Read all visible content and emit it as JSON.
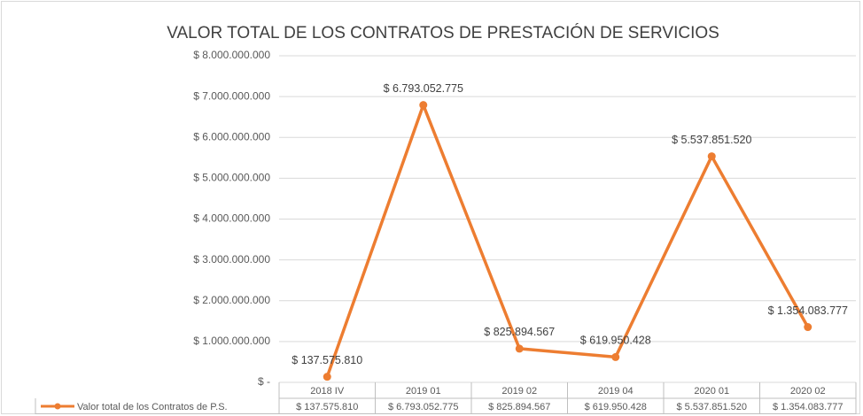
{
  "chart_data": {
    "type": "line",
    "title": "VALOR TOTAL DE LOS CONTRATOS DE PRESTACIÓN DE SERVICIOS",
    "categories": [
      "2018 IV",
      "2019 01",
      "2019 02",
      "2019 04",
      "2020 01",
      "2020 02"
    ],
    "series": [
      {
        "name": "Valor total de los Contratos de P.S.",
        "color": "#ed7d31",
        "values": [
          137575810,
          6793052775,
          825894567,
          619950428,
          5537851520,
          1354083777
        ],
        "value_labels": [
          "$ 137.575.810",
          "$ 6.793.052.775",
          "$ 825.894.567",
          "$ 619.950.428",
          "$ 5.537.851.520",
          "$ 1.354.083.777"
        ]
      }
    ],
    "ylim": [
      0,
      8000000000
    ],
    "yticks": [
      {
        "value": 0,
        "label": "$ -"
      },
      {
        "value": 1000000000,
        "label": "$ 1.000.000.000"
      },
      {
        "value": 2000000000,
        "label": "$ 2.000.000.000"
      },
      {
        "value": 3000000000,
        "label": "$ 3.000.000.000"
      },
      {
        "value": 4000000000,
        "label": "$ 4.000.000.000"
      },
      {
        "value": 5000000000,
        "label": "$ 5.000.000.000"
      },
      {
        "value": 6000000000,
        "label": "$ 6.000.000.000"
      },
      {
        "value": 7000000000,
        "label": "$ 7.000.000.000"
      },
      {
        "value": 8000000000,
        "label": "$ 8.000.000.000"
      }
    ],
    "grid": true,
    "legend": "data-table"
  }
}
